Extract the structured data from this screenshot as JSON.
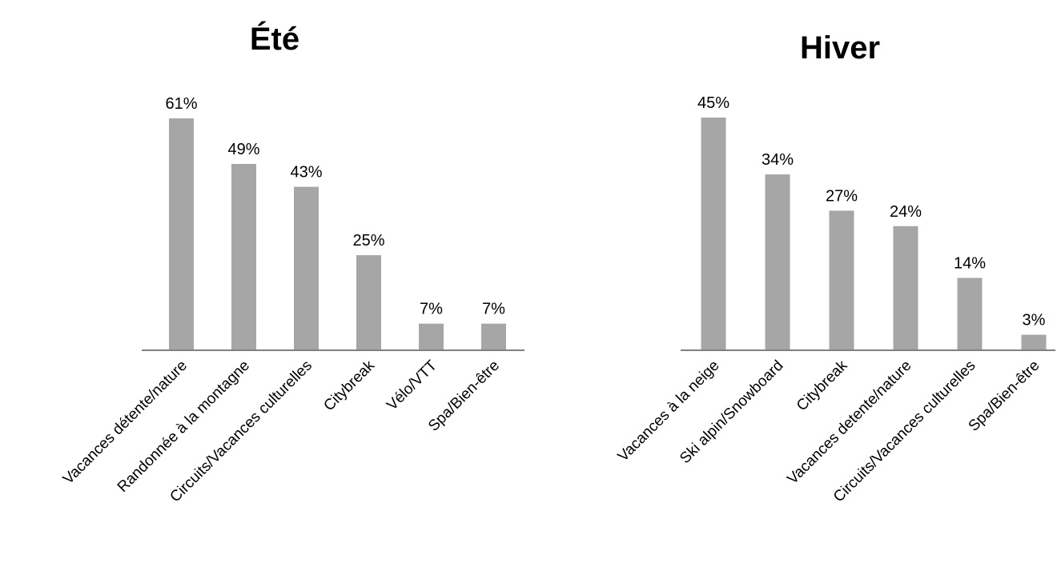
{
  "chart_data": [
    {
      "type": "bar",
      "title": "Été",
      "categories": [
        "Vacances détente/nature",
        "Randonnée à la montagne",
        "Circuits/Vacances culturelles",
        "Citybreak",
        "Vélo/VTT",
        "Spa/Bien-être"
      ],
      "values": [
        61,
        49,
        43,
        25,
        7,
        7
      ],
      "value_labels": [
        "61%",
        "49%",
        "43%",
        "25%",
        "7%",
        "7%"
      ],
      "unit": "%",
      "xlabel": "",
      "ylabel": "",
      "ylim": [
        0,
        61
      ],
      "grid": false,
      "legend": "none",
      "bar_color": "#a6a6a6",
      "axis_color": "#808080"
    },
    {
      "type": "bar",
      "title": "Hiver",
      "categories": [
        "Vacances à la neige",
        "Ski alpin/Snowboard",
        "Citybreak",
        "Vacances detente/nature",
        "Circuits/Vacances culturelles",
        "Spa/Bien-être"
      ],
      "values": [
        45,
        34,
        27,
        24,
        14,
        3
      ],
      "value_labels": [
        "45%",
        "34%",
        "27%",
        "24%",
        "14%",
        "3%"
      ],
      "unit": "%",
      "xlabel": "",
      "ylabel": "",
      "ylim": [
        0,
        45
      ],
      "grid": false,
      "legend": "none",
      "bar_color": "#a6a6a6",
      "axis_color": "#808080"
    }
  ]
}
